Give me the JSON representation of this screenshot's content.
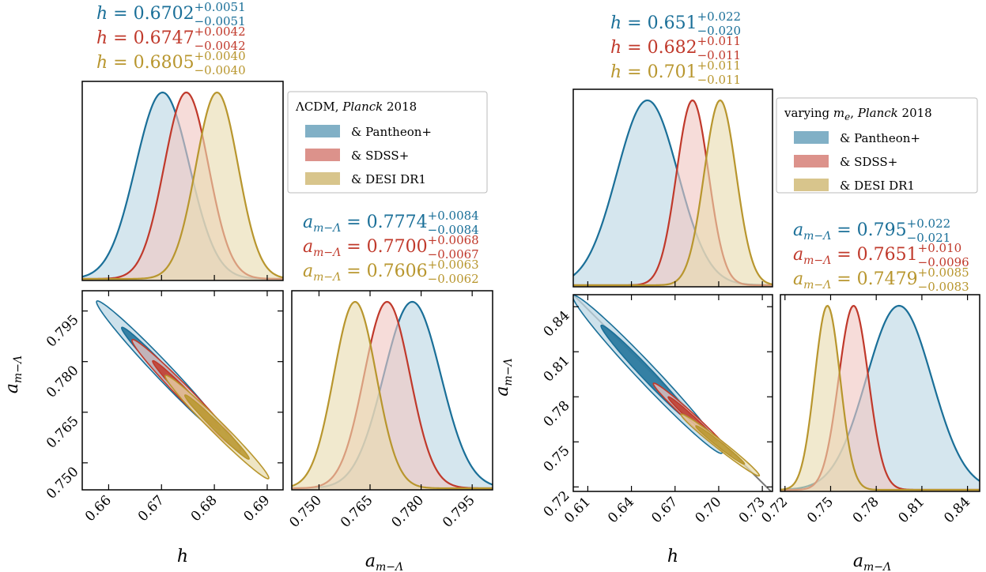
{
  "chart_data": [
    {
      "panel": "left",
      "type": "triangle",
      "legend_title": "ΛCDM, Planck 2018",
      "legend_placement": "right of h marginal",
      "colors": {
        "Pantheon+": "#1a6f98",
        "SDSS+": "#c0392b",
        "DESI DR1": "#b8962e"
      },
      "series": [
        {
          "name": "& Pantheon+",
          "h": {
            "text": "h = 0.6702",
            "sup": "+0.0051",
            "sub": "−0.0051",
            "mean": 0.6702,
            "sigma": 0.0051
          },
          "a": {
            "text": "a_{m−Λ} = 0.7774",
            "sup": "+0.0084",
            "sub": "−0.0084",
            "mean": 0.7774,
            "sigma": 0.0084
          }
        },
        {
          "name": "& SDSS+",
          "h": {
            "text": "h = 0.6747",
            "sup": "+0.0042",
            "sub": "−0.0042",
            "mean": 0.6747,
            "sigma": 0.0042
          },
          "a": {
            "text": "a_{m−Λ} = 0.7700",
            "sup": "+0.0068",
            "sub": "−0.0067",
            "mean": 0.77,
            "sigma": 0.00675
          }
        },
        {
          "name": "& DESI DR1",
          "h": {
            "text": "h = 0.6805",
            "sup": "+0.0040",
            "sub": "−0.0040",
            "mean": 0.6805,
            "sigma": 0.004
          },
          "a": {
            "text": "a_{m−Λ} = 0.7606",
            "sup": "+0.0063",
            "sub": "−0.0062",
            "mean": 0.7606,
            "sigma": 0.00625
          }
        }
      ],
      "h_range": [
        0.655,
        0.693
      ],
      "a_range": [
        0.742,
        0.801
      ],
      "h_ticks": [
        "0.66",
        "0.67",
        "0.68",
        "0.69"
      ],
      "a_ticks": [
        "0.750",
        "0.765",
        "0.780",
        "0.795"
      ],
      "xlabel_h": "h",
      "xlabel_a": "a",
      "ylabel_a": "a"
    },
    {
      "panel": "right",
      "type": "triangle",
      "legend_title": "varying m_e, Planck 2018",
      "legend_placement": "right of h marginal",
      "colors": {
        "Pantheon+": "#1a6f98",
        "SDSS+": "#c0392b",
        "DESI DR1": "#b8962e"
      },
      "series": [
        {
          "name": "& Pantheon+",
          "h": {
            "text": "h = 0.651",
            "sup": "+0.022",
            "sub": "−0.020",
            "mean": 0.651,
            "sigma": 0.021
          },
          "a": {
            "text": "a_{m−Λ} = 0.795",
            "sup": "+0.022",
            "sub": "−0.021",
            "mean": 0.795,
            "sigma": 0.0215
          }
        },
        {
          "name": "& SDSS+",
          "h": {
            "text": "h = 0.682",
            "sup": "+0.011",
            "sub": "−0.011",
            "mean": 0.682,
            "sigma": 0.011
          },
          "a": {
            "text": "a_{m−Λ} = 0.7651",
            "sup": "+0.010",
            "sub": "−0.0096",
            "mean": 0.7651,
            "sigma": 0.0098
          }
        },
        {
          "name": "& DESI DR1",
          "h": {
            "text": "h = 0.701",
            "sup": "+0.011",
            "sub": "−0.011",
            "mean": 0.701,
            "sigma": 0.011
          },
          "a": {
            "text": "a_{m−Λ} = 0.7479",
            "sup": "+0.0085",
            "sub": "−0.0083",
            "mean": 0.7479,
            "sigma": 0.0084
          }
        }
      ],
      "h_range": [
        0.6,
        0.737
      ],
      "a_range": [
        0.717,
        0.848
      ],
      "h_ticks": [
        "0.61",
        "0.64",
        "0.67",
        "0.70",
        "0.73"
      ],
      "a_ticks": [
        "0.72",
        "0.75",
        "0.78",
        "0.81",
        "0.84"
      ],
      "xlabel_h": "h",
      "xlabel_a": "a",
      "ylabel_a": "a",
      "degeneracy_line": true
    }
  ],
  "subscript_text": "m−Λ",
  "legend_title_parts": {
    "left": {
      "pre": "ΛCDM, ",
      "ital": "Planck",
      "post": " 2018"
    },
    "right": {
      "pre": "varying ",
      "ital": "m",
      "sub": "e",
      "mid": ", ",
      "ital2": "Planck",
      "post": " 2018"
    }
  }
}
